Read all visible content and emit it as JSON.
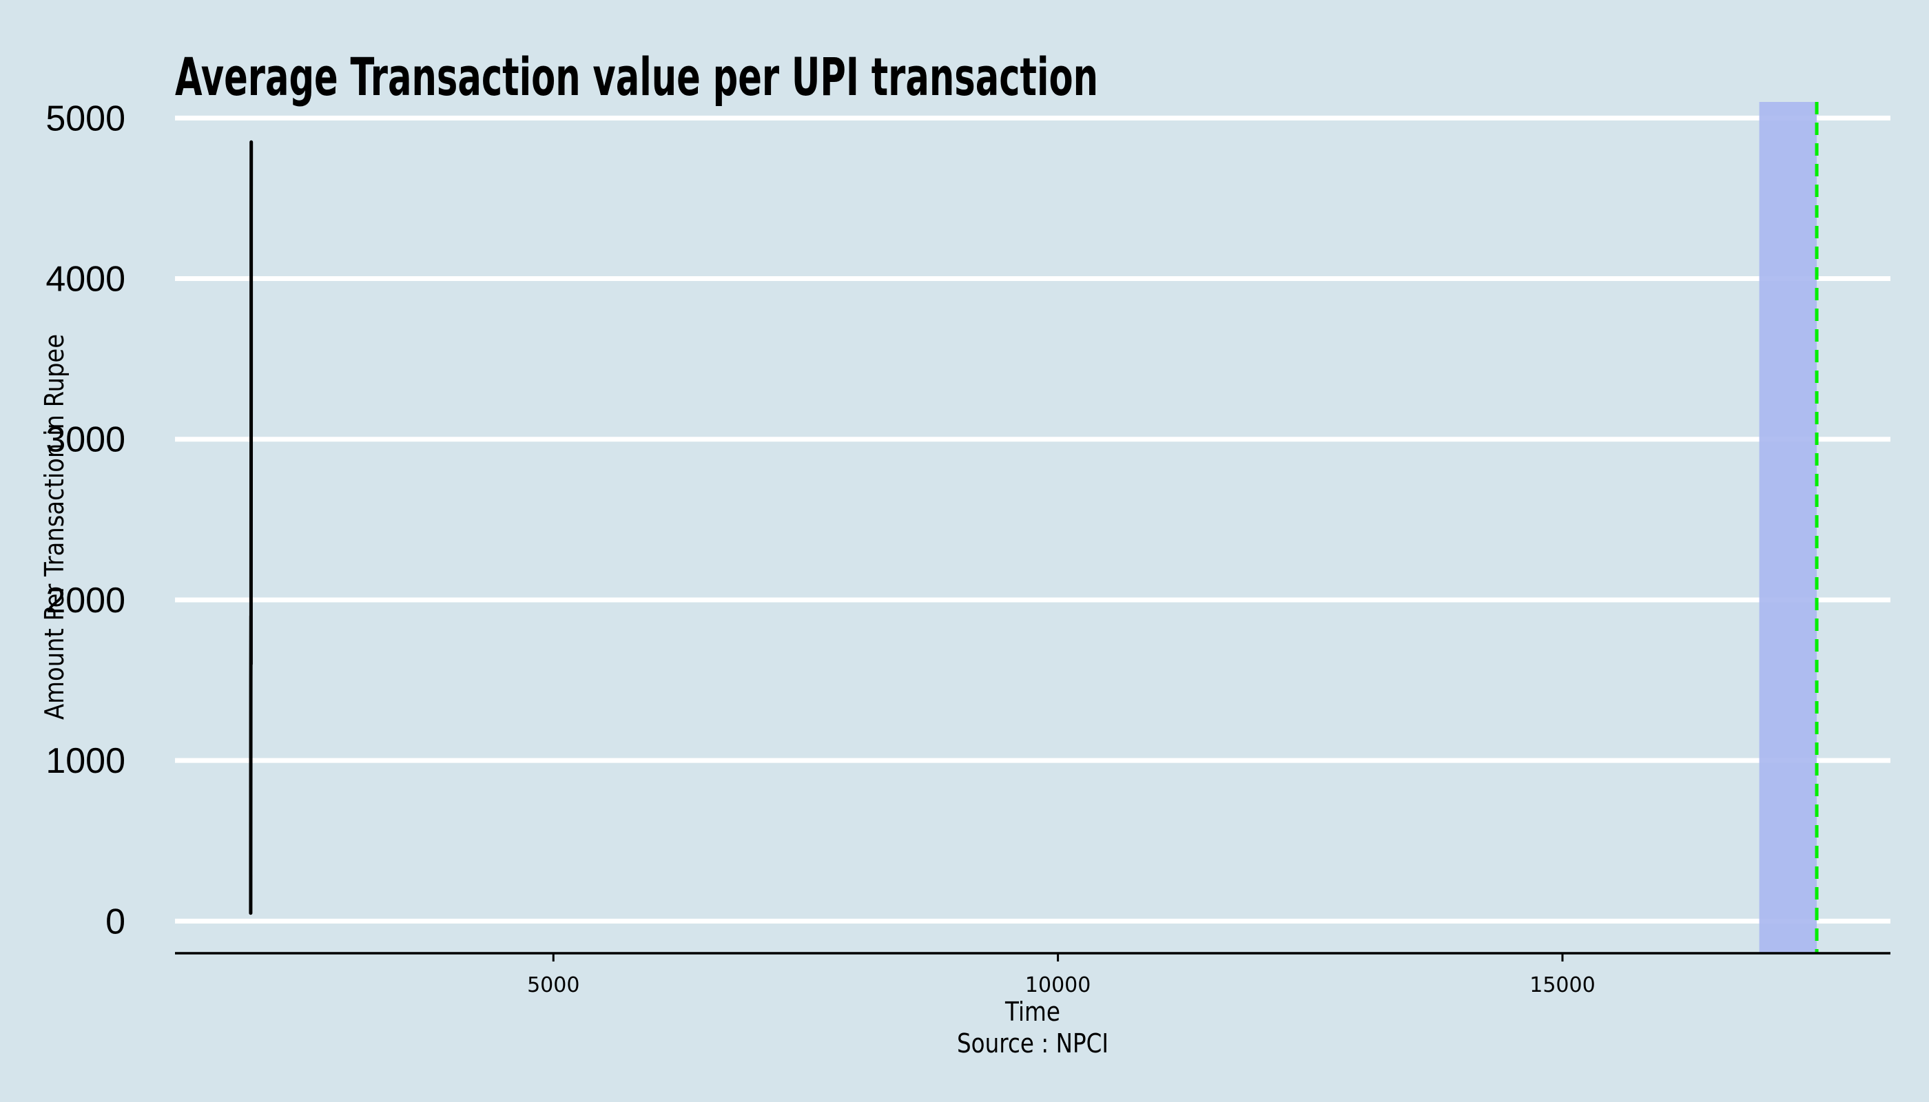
{
  "chart_data": {
    "type": "line",
    "title": "Average Transaction value per UPI transaction",
    "xlabel": "Time",
    "ylabel": "Amount Per Transaction in Rupee",
    "caption": "Source : NPCI",
    "xlim": [
      1250,
      18250
    ],
    "ylim": [
      -200,
      5100
    ],
    "x_ticks": [
      5000,
      10000,
      15000
    ],
    "y_ticks": [
      0,
      1000,
      2000,
      3000,
      4000,
      5000
    ],
    "grid": "horizontal",
    "colors": {
      "background": "#d5e4eb",
      "gridline": "#ffffff",
      "line": "#000000",
      "band": "#aab8f0",
      "marker_line": "#00ee00"
    },
    "series": [
      {
        "x": [
          2000,
          2001,
          2002,
          2003,
          2004,
          2004,
          2005,
          2005,
          2006,
          2006
        ],
        "y": [
          50,
          900,
          1500,
          1900,
          1600,
          2000,
          3400,
          4400,
          4800,
          4850
        ]
      }
    ],
    "band": {
      "x_start": 16950,
      "x_end": 17520
    },
    "vline": {
      "x": 17520,
      "style": "dashed"
    }
  }
}
